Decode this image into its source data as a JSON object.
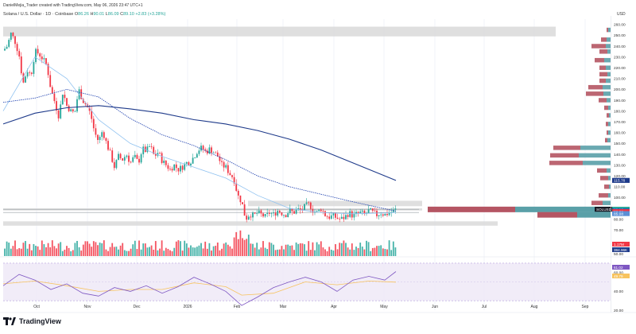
{
  "header": {
    "author_line": "DanielMejia_Trader created with TradingView.com, May 06, 2026 23:47 UTC+1",
    "symbol_line": "Solana / U.S. Dollar · 1D · Coinbase",
    "o_label": "O",
    "o_val": "86.26",
    "h_label": "H",
    "h_val": "90.01",
    "l_label": "L",
    "l_val": "86.09",
    "c_label": "C",
    "c_val": "89.10",
    "change": "+2.83 (+3.28%)",
    "currency": "USD"
  },
  "brand": {
    "name": "TradingView",
    "logo_icon": "tradingview-logo-icon"
  },
  "colors": {
    "up": "#26a69a",
    "down": "#f23645",
    "ma_slow": "#1e3a8a",
    "ma_mid": "#1e40af",
    "ma_fast": "#90c2f0",
    "rsi": "#7e57c2",
    "rsi_ma": "#f7c35f",
    "zone": "#d9d9d9",
    "vp_up": "#5aa0a8",
    "vp_down": "#b55563"
  },
  "chart_data": [
    {
      "type": "candlestick",
      "title": "",
      "x_ticks": [
        "Oct",
        "Nov",
        "Dec",
        "2026",
        "Feb",
        "Mar",
        "Apr",
        "May",
        "Jun",
        "Jul",
        "Aug",
        "Sep"
      ],
      "y_ticks": [
        "260.00",
        "250.00",
        "240.00",
        "230.00",
        "220.00",
        "210.00",
        "200.00",
        "190.00",
        "180.00",
        "170.00",
        "160.00",
        "150.00",
        "140.00",
        "130.00",
        "120.00",
        "110.00",
        "100.00",
        "90.00",
        "80.00",
        "70.00"
      ],
      "ylim": [
        65,
        265
      ],
      "last_price": 89.1,
      "price_path": [
        [
          0,
          236
        ],
        [
          5,
          240
        ],
        [
          10,
          252
        ],
        [
          15,
          244
        ],
        [
          20,
          232
        ],
        [
          25,
          205
        ],
        [
          30,
          218
        ],
        [
          35,
          213
        ],
        [
          40,
          235
        ],
        [
          45,
          233
        ],
        [
          50,
          228
        ],
        [
          55,
          222
        ],
        [
          60,
          200
        ],
        [
          65,
          188
        ],
        [
          70,
          175
        ],
        [
          75,
          198
        ],
        [
          80,
          185
        ],
        [
          85,
          180
        ],
        [
          90,
          178
        ],
        [
          95,
          200
        ],
        [
          100,
          190
        ],
        [
          105,
          185
        ],
        [
          110,
          177
        ],
        [
          115,
          160
        ],
        [
          120,
          152
        ],
        [
          125,
          162
        ],
        [
          130,
          150
        ],
        [
          135,
          140
        ],
        [
          140,
          128
        ],
        [
          145,
          138
        ],
        [
          150,
          135
        ],
        [
          155,
          140
        ],
        [
          160,
          132
        ],
        [
          165,
          138
        ],
        [
          170,
          132
        ],
        [
          175,
          145
        ],
        [
          180,
          143
        ],
        [
          185,
          148
        ],
        [
          190,
          138
        ],
        [
          195,
          142
        ],
        [
          200,
          134
        ],
        [
          205,
          130
        ],
        [
          210,
          126
        ],
        [
          215,
          130
        ],
        [
          220,
          126
        ],
        [
          225,
          128
        ],
        [
          230,
          132
        ],
        [
          235,
          133
        ],
        [
          240,
          138
        ],
        [
          245,
          144
        ],
        [
          250,
          146
        ],
        [
          255,
          142
        ],
        [
          260,
          145
        ],
        [
          265,
          142
        ],
        [
          270,
          138
        ],
        [
          275,
          130
        ],
        [
          280,
          128
        ],
        [
          285,
          122
        ],
        [
          290,
          118
        ],
        [
          295,
          102
        ],
        [
          300,
          96
        ],
        [
          305,
          80
        ],
        [
          310,
          85
        ],
        [
          315,
          83
        ],
        [
          320,
          86
        ],
        [
          325,
          84
        ],
        [
          330,
          82
        ],
        [
          335,
          86
        ],
        [
          340,
          84
        ],
        [
          345,
          88
        ],
        [
          350,
          86
        ],
        [
          355,
          84
        ],
        [
          360,
          88
        ],
        [
          365,
          86
        ],
        [
          370,
          89
        ],
        [
          375,
          88
        ],
        [
          380,
          92
        ],
        [
          385,
          94
        ],
        [
          390,
          88
        ],
        [
          395,
          86
        ],
        [
          400,
          90
        ],
        [
          405,
          84
        ],
        [
          410,
          82
        ],
        [
          415,
          83
        ],
        [
          420,
          81
        ],
        [
          425,
          80
        ],
        [
          430,
          82
        ],
        [
          435,
          86
        ],
        [
          440,
          83
        ],
        [
          445,
          85
        ],
        [
          450,
          86
        ],
        [
          455,
          84
        ],
        [
          460,
          88
        ],
        [
          465,
          86
        ],
        [
          470,
          84
        ],
        [
          475,
          86
        ],
        [
          480,
          84
        ],
        [
          485,
          86
        ],
        [
          490,
          87
        ],
        [
          494,
          89.1
        ]
      ],
      "ma_fast": [
        [
          0,
          180
        ],
        [
          40,
          230
        ],
        [
          80,
          210
        ],
        [
          120,
          172
        ],
        [
          160,
          150
        ],
        [
          200,
          138
        ],
        [
          240,
          128
        ],
        [
          280,
          118
        ],
        [
          320,
          102
        ],
        [
          360,
          90
        ],
        [
          400,
          86
        ],
        [
          440,
          85
        ],
        [
          494,
          86
        ]
      ],
      "ma_mid": [
        [
          0,
          188
        ],
        [
          40,
          192
        ],
        [
          80,
          200
        ],
        [
          120,
          193
        ],
        [
          160,
          173
        ],
        [
          200,
          158
        ],
        [
          240,
          148
        ],
        [
          280,
          135
        ],
        [
          320,
          120
        ],
        [
          360,
          110
        ],
        [
          400,
          103
        ],
        [
          440,
          96
        ],
        [
          494,
          87.4
        ]
      ],
      "ma_slow": [
        [
          0,
          168
        ],
        [
          40,
          178
        ],
        [
          80,
          183
        ],
        [
          120,
          185
        ],
        [
          160,
          182
        ],
        [
          200,
          178
        ],
        [
          240,
          172
        ],
        [
          280,
          168
        ],
        [
          320,
          162
        ],
        [
          360,
          154
        ],
        [
          400,
          144
        ],
        [
          440,
          132
        ],
        [
          494,
          115.78
        ]
      ],
      "zones": [
        {
          "x0": 0,
          "x1": 695,
          "y_top": 258,
          "y_bot": 249
        },
        {
          "x0": 308,
          "x1": 527,
          "y_top": 97,
          "y_bot": 92
        },
        {
          "x0": 0,
          "x1": 527,
          "y_top": 90,
          "y_bot": 88
        },
        {
          "x0": 0,
          "x1": 622,
          "y_top": 78,
          "y_bot": 74
        }
      ],
      "volume_profile": [
        {
          "price": 255,
          "up": 3,
          "down": 2
        },
        {
          "price": 246,
          "up": 5,
          "down": 7
        },
        {
          "price": 240,
          "up": 6,
          "down": 18
        },
        {
          "price": 235,
          "up": 4,
          "down": 10
        },
        {
          "price": 227,
          "up": 8,
          "down": 12
        },
        {
          "price": 220,
          "up": 6,
          "down": 8
        },
        {
          "price": 214,
          "up": 4,
          "down": 10
        },
        {
          "price": 208,
          "up": 6,
          "down": 8
        },
        {
          "price": 202,
          "up": 10,
          "down": 18
        },
        {
          "price": 196,
          "up": 9,
          "down": 22
        },
        {
          "price": 190,
          "up": 5,
          "down": 10
        },
        {
          "price": 183,
          "up": 3,
          "down": 5
        },
        {
          "price": 176,
          "up": 2,
          "down": 3
        },
        {
          "price": 168,
          "up": 3,
          "down": 3
        },
        {
          "price": 160,
          "up": 3,
          "down": 2
        },
        {
          "price": 153,
          "up": 4,
          "down": 3
        },
        {
          "price": 146,
          "up": 38,
          "down": 34
        },
        {
          "price": 139,
          "up": 40,
          "down": 36
        },
        {
          "price": 132,
          "up": 35,
          "down": 42
        },
        {
          "price": 125,
          "up": 5,
          "down": 12
        },
        {
          "price": 118,
          "up": 3,
          "down": 10
        },
        {
          "price": 110,
          "up": 2,
          "down": 6
        },
        {
          "price": 102,
          "up": 3,
          "down": 12
        },
        {
          "price": 95,
          "up": 10,
          "down": 14
        },
        {
          "price": 89,
          "up": 120,
          "down": 110
        },
        {
          "price": 84,
          "up": 42,
          "down": 50
        }
      ],
      "price_labels": [
        {
          "value": 115.78,
          "text": "115.78",
          "color": "#1e3a8a"
        },
        {
          "value": 89.1,
          "text": "89.10",
          "color": "#26a69a",
          "tag": "SOLUSD"
        },
        {
          "value": 87.42,
          "text": "87.42",
          "color": "#1e40af"
        },
        {
          "value": 86.88,
          "text": "86.88",
          "color": "#f23645"
        },
        {
          "value": 85.08,
          "text": "85.08",
          "color": "#5b8fd6"
        }
      ],
      "volume": {
        "labels": [
          {
            "text": "1.17M",
            "color": "#f23645"
          },
          {
            "text": "384.96K",
            "color": "#1e3a8a"
          }
        ],
        "axis_tick": "50.00"
      }
    },
    {
      "type": "line",
      "title": "",
      "ylim": [
        20,
        75
      ],
      "y_ticks": [
        "60.00",
        "40.00",
        "20.00"
      ],
      "upper_band": 70,
      "lower_band": 30,
      "rsi": [
        [
          0,
          46
        ],
        [
          20,
          58
        ],
        [
          40,
          52
        ],
        [
          60,
          42
        ],
        [
          80,
          48
        ],
        [
          100,
          38
        ],
        [
          120,
          35
        ],
        [
          140,
          44
        ],
        [
          160,
          40
        ],
        [
          180,
          46
        ],
        [
          200,
          38
        ],
        [
          220,
          45
        ],
        [
          240,
          55
        ],
        [
          260,
          48
        ],
        [
          280,
          40
        ],
        [
          300,
          25
        ],
        [
          320,
          34
        ],
        [
          340,
          44
        ],
        [
          360,
          50
        ],
        [
          380,
          55
        ],
        [
          400,
          50
        ],
        [
          420,
          40
        ],
        [
          440,
          52
        ],
        [
          460,
          56
        ],
        [
          480,
          52
        ],
        [
          494,
          61
        ]
      ],
      "rsi_ma": [
        [
          0,
          48
        ],
        [
          40,
          51
        ],
        [
          80,
          46
        ],
        [
          120,
          40
        ],
        [
          160,
          42
        ],
        [
          200,
          42
        ],
        [
          240,
          49
        ],
        [
          280,
          45
        ],
        [
          300,
          36
        ],
        [
          340,
          38
        ],
        [
          380,
          50
        ],
        [
          420,
          47
        ],
        [
          460,
          51
        ],
        [
          494,
          49.79
        ]
      ],
      "labels": [
        {
          "text": "61.02",
          "color": "#7e57c2"
        },
        {
          "text": "49.79",
          "color": "#f7c35f"
        }
      ]
    }
  ]
}
